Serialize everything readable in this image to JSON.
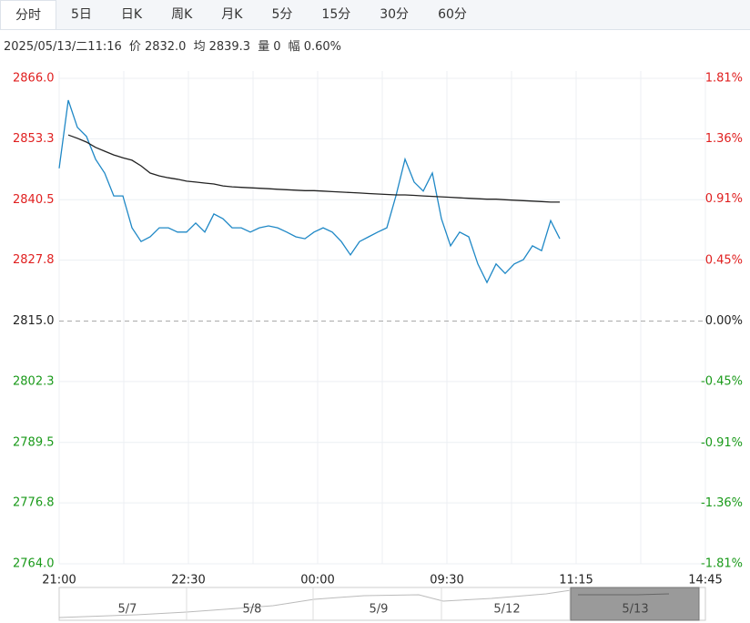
{
  "tabs": [
    "分时",
    "5日",
    "日K",
    "周K",
    "月K",
    "5分",
    "15分",
    "30分",
    "60分"
  ],
  "active_tab": 0,
  "info": {
    "datetime": "2025/05/13/二11:16",
    "price_label": "价",
    "price": "2832.0",
    "avg_label": "均",
    "avg": "2839.3",
    "volume_label": "量",
    "volume": "0",
    "change_label": "幅",
    "change": "0.60%"
  },
  "chart_data": {
    "type": "line",
    "x_labels": [
      "21:00",
      "22:30",
      "00:00",
      "09:30",
      "11:15",
      "14:45"
    ],
    "ylim": [
      2764,
      2866
    ],
    "yticks": [
      {
        "value": 2866,
        "label": "2866.0"
      },
      2853.3,
      2840.5,
      2827.8,
      {
        "value": 2815,
        "label": "2815.0"
      },
      2802.3,
      2789.5,
      2776.8,
      {
        "value": 2764,
        "label": "2764.0"
      }
    ],
    "y2lim": [
      -1.81,
      1.81
    ],
    "y2ticks": [
      {
        "value": 1.81,
        "label": "1.81%"
      },
      {
        "value": 1.36,
        "label": "1.36%"
      },
      {
        "value": 0.91,
        "label": "0.91%"
      },
      {
        "value": 0.45,
        "label": "0.45%"
      },
      {
        "value": 0,
        "label": "0.00%"
      },
      {
        "value": -0.45,
        "label": "-0.45%"
      },
      {
        "value": -0.91,
        "label": "-0.91%"
      },
      {
        "value": -1.36,
        "label": "-1.36%"
      },
      {
        "value": -1.81,
        "label": "-1.81%"
      }
    ],
    "up_color": "#e02020",
    "down_color": "#1a9a1a",
    "grid": true,
    "series": [
      {
        "name": "价",
        "color": "#1f88c6",
        "values": [
          2847.1,
          2861.4,
          2855.7,
          2853.8,
          2849.0,
          2846.1,
          2841.3,
          2841.3,
          2834.6,
          2831.7,
          2832.7,
          2834.6,
          2834.6,
          2833.7,
          2833.7,
          2835.6,
          2833.7,
          2837.5,
          2836.5,
          2834.6,
          2834.6,
          2833.7,
          2834.6,
          2835.0,
          2834.6,
          2833.7,
          2832.7,
          2832.3,
          2833.7,
          2834.6,
          2833.7,
          2831.7,
          2828.9,
          2831.7,
          2832.7,
          2833.7,
          2834.6,
          2841.3,
          2849.0,
          2844.2,
          2842.3,
          2846.1,
          2836.5,
          2830.8,
          2833.7,
          2832.7,
          2827.0,
          2823.1,
          2827.0,
          2825.0,
          2827.0,
          2827.9,
          2830.8,
          2829.8,
          2836.1,
          2832.3,
          null,
          null,
          null,
          null,
          null,
          null,
          null,
          null,
          null,
          null,
          null,
          null,
          null,
          null,
          null,
          null
        ]
      },
      {
        "name": "均",
        "color": "#222222",
        "values": [
          null,
          2854.1,
          2853.4,
          2852.6,
          2851.5,
          2850.7,
          2849.9,
          2849.3,
          2848.8,
          2847.6,
          2846.1,
          2845.5,
          2845.1,
          2844.8,
          2844.4,
          2844.2,
          2844.0,
          2843.8,
          2843.4,
          2843.2,
          2843.1,
          2843.0,
          2842.9,
          2842.8,
          2842.7,
          2842.6,
          2842.5,
          2842.4,
          2842.4,
          2842.3,
          2842.2,
          2842.1,
          2842.0,
          2841.9,
          2841.8,
          2841.7,
          2841.6,
          2841.5,
          2841.5,
          2841.4,
          2841.3,
          2841.2,
          2841.1,
          2841.0,
          2840.9,
          2840.8,
          2840.7,
          2840.6,
          2840.6,
          2840.5,
          2840.4,
          2840.3,
          2840.2,
          2840.1,
          2840.0,
          2840.0,
          null,
          null,
          null,
          null,
          null,
          null,
          null,
          null,
          null,
          null,
          null,
          null,
          null,
          null,
          null,
          null
        ]
      }
    ]
  },
  "navigator": {
    "labels": [
      "5/7",
      "5/8",
      "5/9",
      "5/12",
      "5/13"
    ]
  }
}
